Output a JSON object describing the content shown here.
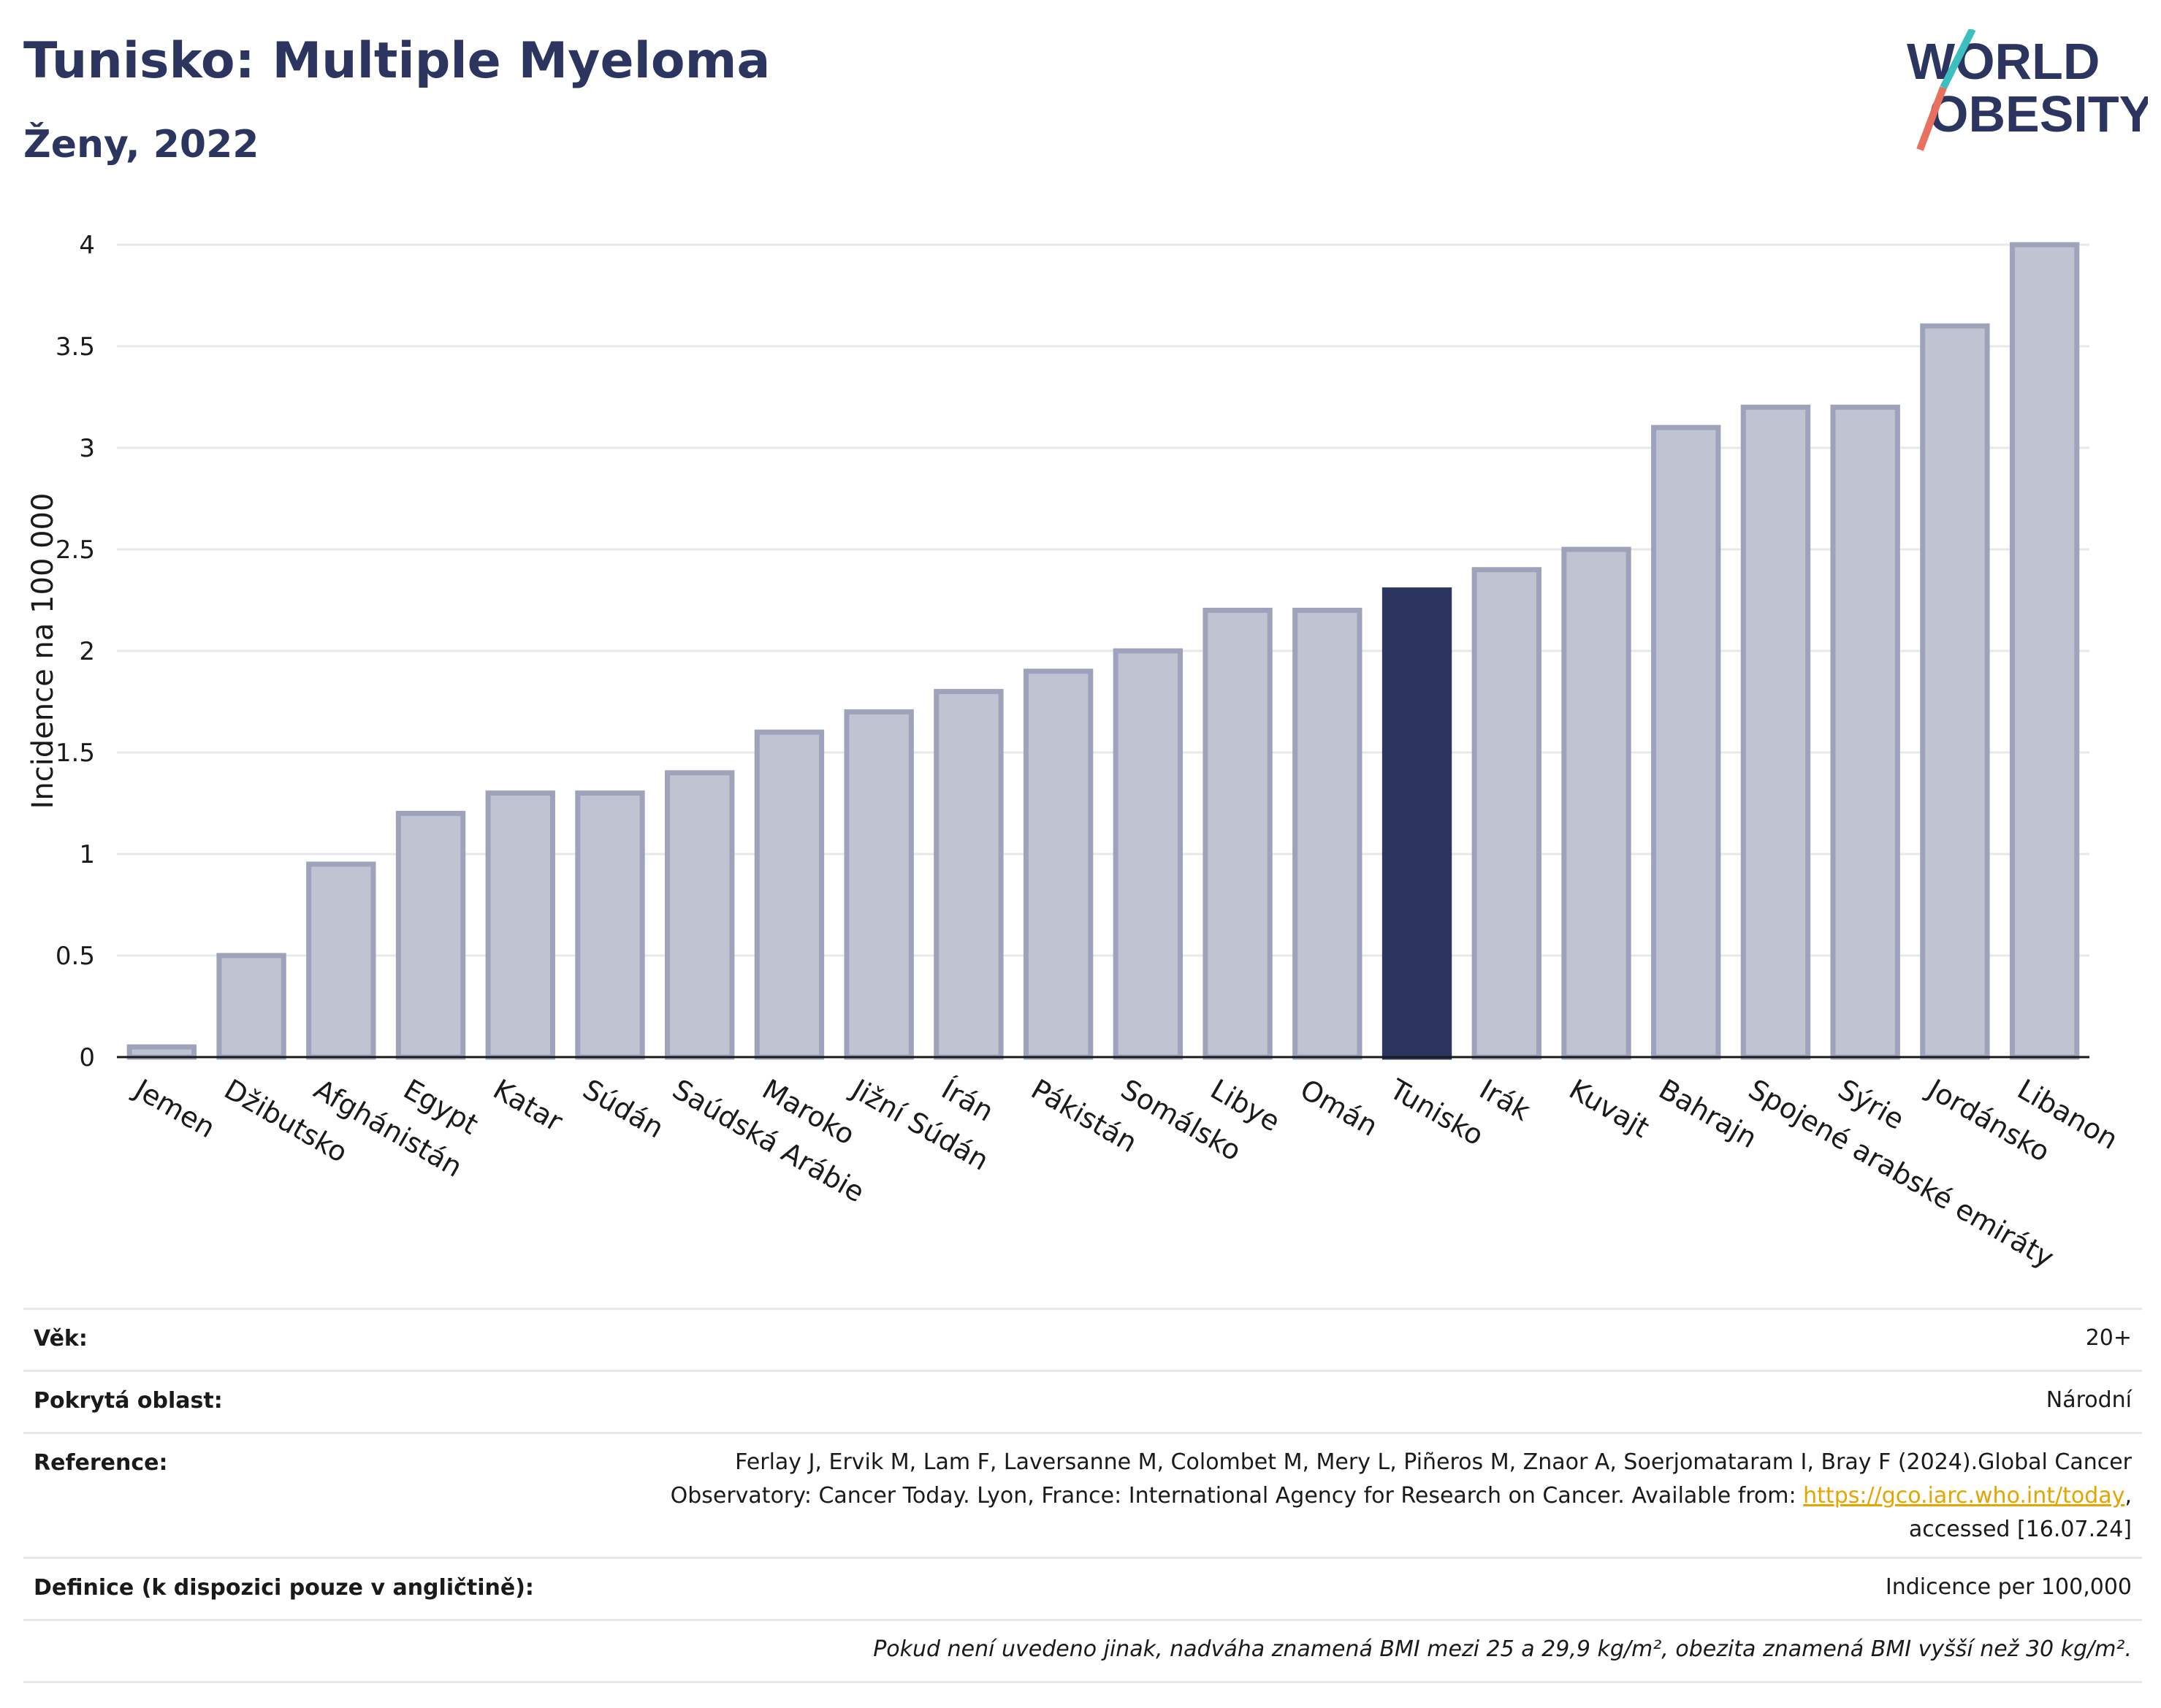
{
  "header": {
    "title": "Tunisko: Multiple Myeloma",
    "subtitle": "Ženy, 2022"
  },
  "logo": {
    "line1": "WORLD",
    "line2": "OBESITY"
  },
  "colors": {
    "bar": "#c0c3d1",
    "bar_stroke": "#9ea3bb",
    "highlight": "#2b3560",
    "grid": "#e6e8ee",
    "axis": "#1a1a1a"
  },
  "chart_data": {
    "type": "bar",
    "ylabel": "Incidence na 100 000",
    "ylim": [
      0,
      4
    ],
    "yticks": [
      0,
      0.5,
      1,
      1.5,
      2,
      2.5,
      3,
      3.5,
      4
    ],
    "ytick_labels": [
      "0",
      "0.5",
      "1",
      "1.5",
      "2",
      "2.5",
      "3",
      "3.5",
      "4"
    ],
    "categories": [
      "Jemen",
      "Džibutsko",
      "Afghánistán",
      "Egypt",
      "Katar",
      "Súdán",
      "Saúdská Arábie",
      "Maroko",
      "Jižní Súdán",
      "Írán",
      "Pákistán",
      "Somálsko",
      "Libye",
      "Omán",
      "Tunisko",
      "Irák",
      "Kuvajt",
      "Bahrajn",
      "Spojené arabské emiráty",
      "Sýrie",
      "Jordánsko",
      "Libanon"
    ],
    "values": [
      0.05,
      0.5,
      0.95,
      1.2,
      1.3,
      1.3,
      1.4,
      1.6,
      1.7,
      1.8,
      1.9,
      2.0,
      2.2,
      2.2,
      2.3,
      2.4,
      2.5,
      3.1,
      3.2,
      3.2,
      3.6,
      4.0
    ],
    "highlight": "Tunisko",
    "grid": true
  },
  "meta": [
    {
      "key": "Věk:",
      "value": "20+"
    },
    {
      "key": "Pokrytá oblast:",
      "value": "Národní"
    },
    {
      "key": "Reference:",
      "line1": "Ferlay J, Ervik M, Lam F, Laversanne M, Colombet M, Mery L, Piñeros M, Znaor A, Soerjomataram I, Bray F (2024).Global Cancer",
      "line2": "Observatory: Cancer Today. Lyon, France: International Agency for Research on Cancer. Available from: ",
      "link": "https://gco.iarc.who.int/today",
      "line2_end": ",",
      "line3": "accessed [16.07.24]"
    },
    {
      "key": "Definice (k dispozici pouze v angličtině):",
      "value": "Indicence per 100,000"
    },
    {
      "value": "Pokud není uvedeno jinak, nadváha znamená BMI mezi 25 a 29,9 kg/m², obezita znamená BMI vyšší než 30 kg/m²."
    }
  ]
}
